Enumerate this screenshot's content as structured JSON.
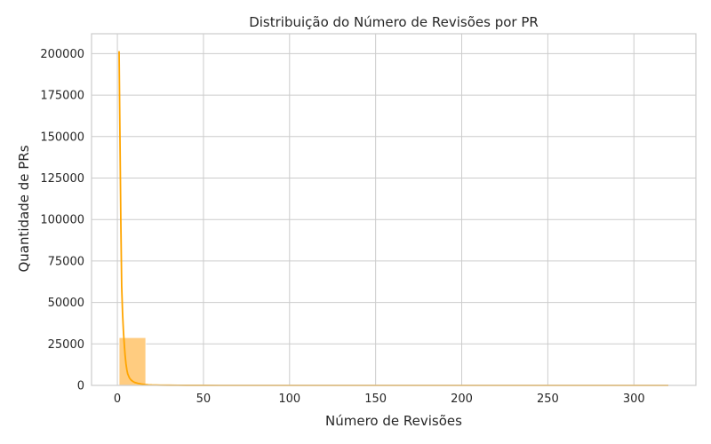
{
  "chart_data": {
    "type": "bar",
    "title": "Distribuição do Número de Revisões por PR",
    "xlabel": "Número de Revisões",
    "ylabel": "Quantidade de PRs",
    "xlim": [
      -15,
      336
    ],
    "ylim": [
      0,
      212000
    ],
    "xticks": [
      0,
      50,
      100,
      150,
      200,
      250,
      300
    ],
    "yticks": [
      0,
      25000,
      50000,
      75000,
      100000,
      125000,
      150000,
      175000,
      200000
    ],
    "grid": true,
    "legend": "none",
    "colors": {
      "bar": "#ffcc80",
      "line": "#ffa500",
      "grid": "#cccccc",
      "spine": "#cccccc"
    },
    "histogram": {
      "bin_edges": [
        1,
        16.5,
        32,
        47.5,
        63,
        78.5,
        94,
        109.5,
        125,
        140.5,
        156,
        171.5,
        187,
        202.5,
        218,
        233.5,
        249,
        264.5,
        280,
        295.5,
        311,
        326.5
      ],
      "counts": [
        28800,
        600,
        150,
        60,
        30,
        15,
        10,
        8,
        6,
        5,
        4,
        3,
        3,
        2,
        2,
        2,
        1,
        1,
        1,
        1,
        1
      ]
    },
    "kde": {
      "x": [
        1,
        1.5,
        2,
        2.5,
        3,
        3.5,
        4,
        4.5,
        5,
        5.5,
        6,
        7,
        8,
        9,
        10,
        12,
        14,
        16,
        18,
        20,
        25,
        30,
        35,
        40,
        50,
        60,
        80,
        100,
        150,
        200,
        250,
        300,
        320
      ],
      "y": [
        201500,
        150000,
        100000,
        60000,
        44000,
        33000,
        25000,
        18000,
        13000,
        9500,
        7000,
        4500,
        3200,
        2400,
        1800,
        1200,
        800,
        500,
        350,
        250,
        150,
        90,
        60,
        40,
        20,
        10,
        5,
        3,
        2,
        1,
        0,
        0,
        0
      ]
    }
  }
}
